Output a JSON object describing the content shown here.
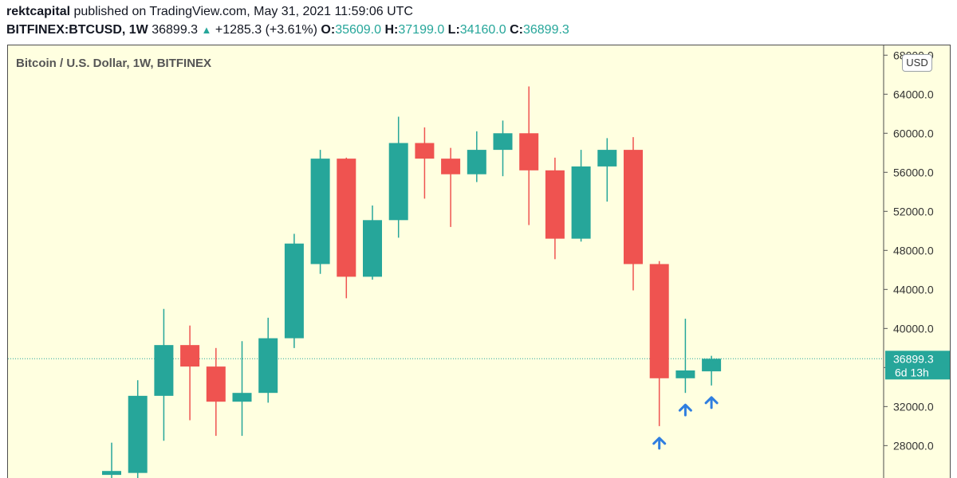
{
  "header": {
    "author": "rektcapital",
    "published_text": "published on TradingView.com, May 31, 2021 11:59:06 UTC",
    "symbol": "BITFINEX:BTCUSD, 1W",
    "last": "36899.3",
    "change": "+1285.3 (+3.61%)",
    "open_label": "O:",
    "open": "35609.0",
    "high_label": "H:",
    "high": "37199.0",
    "low_label": "L:",
    "low": "34160.0",
    "close_label": "C:",
    "close": "36899.3"
  },
  "chart_title": "Bitcoin / U.S. Dollar, 1W, BITFINEX",
  "currency_button": "USD",
  "price_tag": {
    "price": "36899.3",
    "countdown": "6d 13h"
  },
  "colors": {
    "up": "#26a69a",
    "down": "#ef5350",
    "background": "#ffffe0",
    "arrow": "#2f7ee0",
    "price_line": "#26a69a"
  },
  "chart_data": {
    "type": "candlestick",
    "title": "Bitcoin / U.S. Dollar, 1W, BITFINEX",
    "ylabel": "USD",
    "ylim": [
      24600,
      69000
    ],
    "y_ticks": [
      28000,
      32000,
      36000,
      40000,
      44000,
      48000,
      52000,
      56000,
      60000,
      64000,
      68000
    ],
    "current_price": 36899.3,
    "candles": [
      {
        "o": 25000,
        "h": 28300,
        "l": 24600,
        "c": 25400
      },
      {
        "o": 25200,
        "h": 34700,
        "l": 24600,
        "c": 33100
      },
      {
        "o": 33100,
        "h": 42000,
        "l": 28500,
        "c": 38300
      },
      {
        "o": 38300,
        "h": 40300,
        "l": 30600,
        "c": 36100
      },
      {
        "o": 36100,
        "h": 38000,
        "l": 29000,
        "c": 32500
      },
      {
        "o": 32500,
        "h": 38700,
        "l": 29000,
        "c": 33400
      },
      {
        "o": 33400,
        "h": 41100,
        "l": 32400,
        "c": 39000
      },
      {
        "o": 39000,
        "h": 49700,
        "l": 38000,
        "c": 48700
      },
      {
        "o": 46600,
        "h": 58300,
        "l": 45600,
        "c": 57400
      },
      {
        "o": 57400,
        "h": 57500,
        "l": 43100,
        "c": 45300
      },
      {
        "o": 45300,
        "h": 52600,
        "l": 45000,
        "c": 51100
      },
      {
        "o": 51100,
        "h": 61700,
        "l": 49300,
        "c": 59000
      },
      {
        "o": 59000,
        "h": 60600,
        "l": 53300,
        "c": 57400
      },
      {
        "o": 57400,
        "h": 58500,
        "l": 50400,
        "c": 55800
      },
      {
        "o": 55800,
        "h": 60200,
        "l": 55000,
        "c": 58300
      },
      {
        "o": 58300,
        "h": 61300,
        "l": 55600,
        "c": 60000
      },
      {
        "o": 60000,
        "h": 64800,
        "l": 50600,
        "c": 56200
      },
      {
        "o": 56200,
        "h": 57500,
        "l": 47100,
        "c": 49200
      },
      {
        "o": 49200,
        "h": 58300,
        "l": 48900,
        "c": 56600
      },
      {
        "o": 56600,
        "h": 59500,
        "l": 53000,
        "c": 58300
      },
      {
        "o": 58300,
        "h": 59600,
        "l": 43900,
        "c": 46600
      },
      {
        "o": 46600,
        "h": 46900,
        "l": 30000,
        "c": 34900
      },
      {
        "o": 34900,
        "h": 41000,
        "l": 33400,
        "c": 35700
      },
      {
        "o": 35609,
        "h": 37199,
        "l": 34160,
        "c": 36899.3
      }
    ],
    "arrows_below_candles": [
      21,
      22,
      23
    ]
  }
}
